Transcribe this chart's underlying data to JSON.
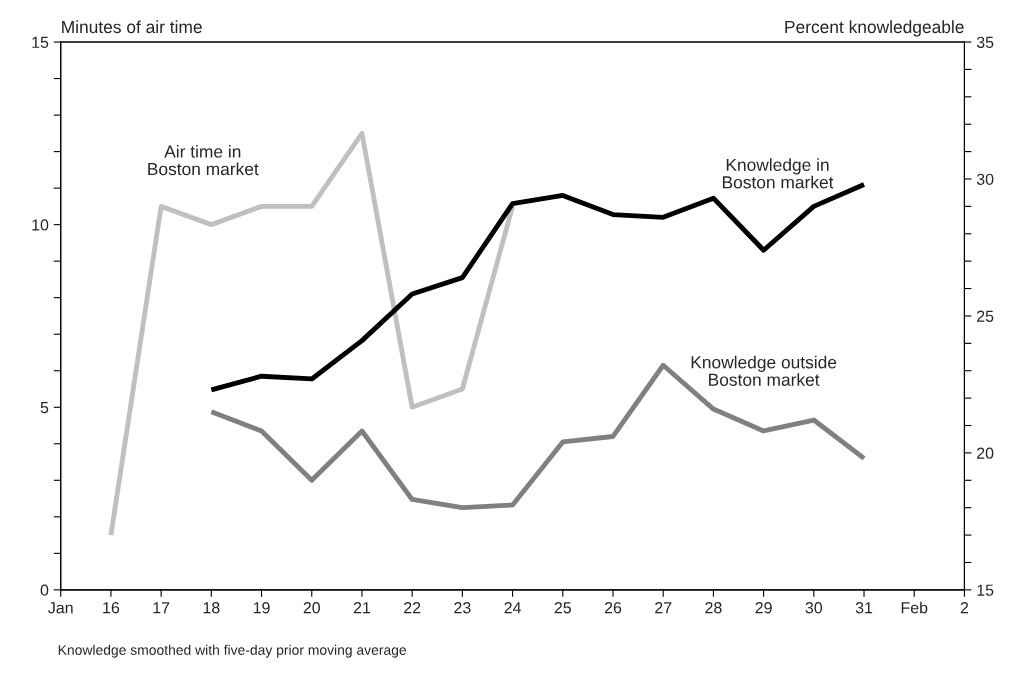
{
  "chart_data": {
    "type": "line",
    "ylabel": "Minutes of air time",
    "y2label": "Percent knowledgeable",
    "categories": [
      "Jan",
      "16",
      "17",
      "18",
      "19",
      "20",
      "21",
      "22",
      "23",
      "24",
      "25",
      "26",
      "27",
      "28",
      "29",
      "30",
      "31",
      "Feb",
      "2"
    ],
    "series": [
      {
        "name": "Air time in\nBoston market",
        "color": "#c0c0c0",
        "values": [
          null,
          1.5,
          10.5,
          10,
          10.5,
          10.5,
          12.5,
          5,
          5.5,
          10.5,
          null,
          null,
          null,
          null,
          null,
          null,
          null,
          null,
          null
        ]
      },
      {
        "name": "Knowledge in\nBoston market",
        "color": "#000000",
        "axis": "y2",
        "values": [
          null,
          null,
          null,
          22.3,
          22.8,
          22.7,
          24.1,
          25.8,
          26.4,
          29.1,
          29.4,
          28.7,
          28.6,
          29.3,
          27.4,
          29.0,
          29.8,
          null,
          null
        ]
      },
      {
        "name": "Knowledge outside\nBoston market",
        "color": "#808080",
        "axis": "y2",
        "values": [
          null,
          null,
          null,
          21.5,
          20.8,
          19.0,
          20.8,
          18.3,
          18.0,
          18.1,
          20.4,
          20.6,
          23.2,
          21.6,
          20.8,
          21.2,
          19.8,
          null,
          null
        ]
      }
    ],
    "ylim": [
      0,
      15
    ],
    "yticks": [
      0,
      {
        "value": 1,
        "label": null
      },
      {
        "value": 2,
        "label": null
      },
      {
        "value": 3,
        "label": null
      },
      {
        "value": 4,
        "label": null
      },
      5,
      {
        "value": 6,
        "label": null
      },
      {
        "value": 7,
        "label": null
      },
      {
        "value": 8,
        "label": null
      },
      {
        "value": 9,
        "label": null
      },
      10,
      {
        "value": 11,
        "label": null
      },
      {
        "value": 12,
        "label": null
      },
      {
        "value": 13,
        "label": null
      },
      {
        "value": 14,
        "label": null
      },
      15
    ],
    "y2lim": [
      15,
      35
    ],
    "y2ticks": [
      15,
      {
        "value": 16,
        "label": null
      },
      {
        "value": 17,
        "label": null
      },
      {
        "value": 18,
        "label": null
      },
      {
        "value": 19,
        "label": null
      },
      20,
      {
        "value": 21,
        "label": null
      },
      {
        "value": 22,
        "label": null
      },
      {
        "value": 23,
        "label": null
      },
      {
        "value": 24,
        "label": null
      },
      25,
      {
        "value": 26,
        "label": null
      },
      {
        "value": 27,
        "label": null
      },
      {
        "value": 28,
        "label": null
      },
      {
        "value": 29,
        "label": null
      },
      30,
      {
        "value": 31,
        "label": null
      },
      {
        "value": 32,
        "label": null
      },
      {
        "value": 33,
        "label": null
      },
      {
        "value": 34,
        "label": null
      },
      35
    ],
    "annotations": [
      "Knowledge smoothed with five-day prior moving average"
    ],
    "grid": false,
    "legend": false,
    "marker": "none",
    "line_style": "solid"
  }
}
